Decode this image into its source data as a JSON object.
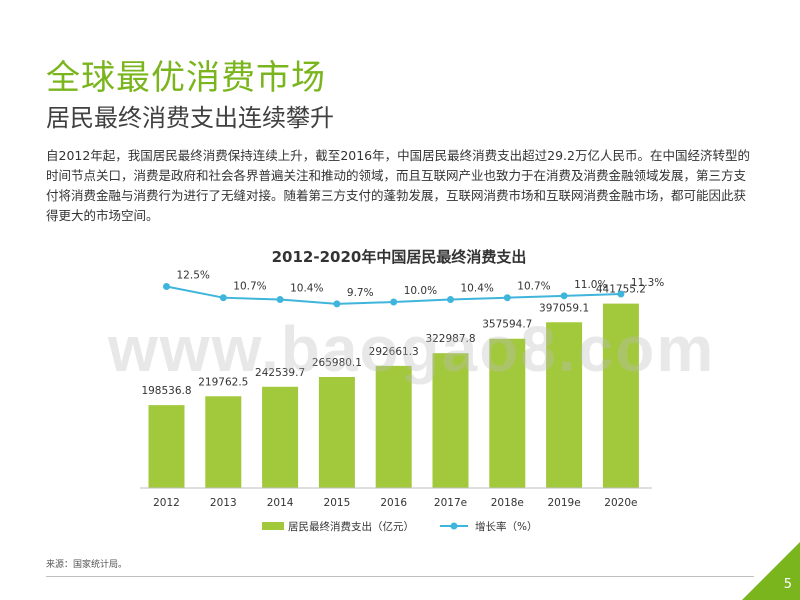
{
  "page": {
    "title": "全球最优消费市场",
    "subtitle": "居民最终消费支出连续攀升",
    "body": "自2012年起，我国居民最终消费保持连续上升，截至2016年，中国居民最终消费支出超过29.2万亿人民币。在中国经济转型的时间节点关口，消费是政府和社会各界普遍关注和推动的领域，而且互联网产业也致力于在消费及消费金融领域发展，第三方支付将消费金融与消费行为进行了无缝对接。随着第三方支付的蓬勃发展，互联网消费市场和互联网消费金融市场，都可能因此获得更大的市场空间。",
    "source": "来源：国家统计局。",
    "page_number": "5",
    "watermark": "www.baogao8.com"
  },
  "colors": {
    "accent": "#7ab51d",
    "bar": "#a2c83c",
    "line": "#3fb5dc",
    "text": "#333333"
  },
  "chart_data": {
    "type": "bar",
    "title": "2012-2020年中国居民最终消费支出",
    "categories": [
      "2012",
      "2013",
      "2014",
      "2015",
      "2016",
      "2017e",
      "2018e",
      "2019e",
      "2020e"
    ],
    "series": [
      {
        "name": "居民最终消费支出（亿元）",
        "type": "bar",
        "values": [
          198536.8,
          219762.5,
          242539.7,
          265980.1,
          292661.3,
          322987.8,
          357594.7,
          397059.1,
          441755.2
        ],
        "labels": [
          "198536.8",
          "219762.5",
          "242539.7",
          "265980.1",
          "292661.3",
          "322987.8",
          "357594.7",
          "397059.1",
          "441755.2"
        ]
      },
      {
        "name": "增长率（%）",
        "type": "line",
        "values": [
          12.5,
          10.7,
          10.4,
          9.7,
          10.0,
          10.4,
          10.7,
          11.0,
          11.3
        ],
        "labels": [
          "12.5%",
          "10.7%",
          "10.4%",
          "9.7%",
          "10.0%",
          "10.4%",
          "10.7%",
          "11.0%",
          "11.3%"
        ]
      }
    ],
    "ylim_bar": [
      0,
      460000
    ],
    "ylim_line": [
      0,
      14.2
    ],
    "legend": "bottom-center",
    "grid": false
  }
}
